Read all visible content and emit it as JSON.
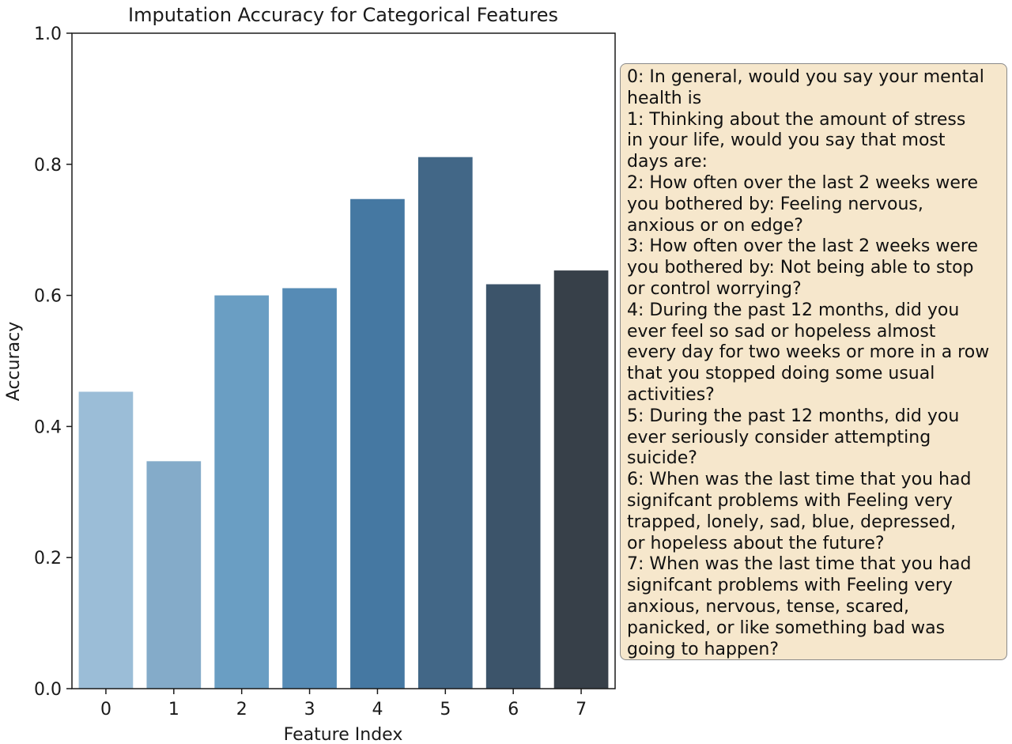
{
  "chart_data": {
    "type": "bar",
    "title": "Imputation Accuracy for Categorical Features",
    "xlabel": "Feature Index",
    "ylabel": "Accuracy",
    "ylim": [
      0,
      1.0
    ],
    "yticks": [
      "0.0",
      "0.2",
      "0.4",
      "0.6",
      "0.8",
      "1.0"
    ],
    "categories": [
      "0",
      "1",
      "2",
      "3",
      "4",
      "5",
      "6",
      "7"
    ],
    "values": [
      0.453,
      0.347,
      0.6,
      0.611,
      0.747,
      0.811,
      0.617,
      0.638
    ],
    "bar_colors": [
      "#9bbdd7",
      "#84abc9",
      "#6a9ec3",
      "#568bb5",
      "#4578a2",
      "#426787",
      "#3c546a",
      "#374049"
    ],
    "grid": false,
    "legend_placement": "right"
  },
  "legend": {
    "lines": [
      "0: In general, would you say your mental",
      "health is",
      "1: Thinking about the amount of stress",
      "in your life, would you say that most",
      "days are:",
      "2: How often over the last 2 weeks were",
      "you bothered by: Feeling nervous,",
      "anxious or on edge?",
      "3: How often over the last 2 weeks were",
      "you bothered by: Not being able to stop",
      "or control worrying?",
      "4: During the past 12 months, did you",
      "ever feel so sad or hopeless almost",
      "every day for two weeks or more in a row",
      "that you stopped doing some usual",
      "activities?",
      "5: During the past 12 months, did you",
      "ever seriously consider attempting",
      "suicide?",
      "6: When was the last time that you had",
      "signifcant problems with Feeling very",
      "trapped, lonely, sad, blue, depressed,",
      "or hopeless about the future?",
      "7: When was the last time that you had",
      "signifcant problems with Feeling very",
      "anxious, nervous, tense, scared,",
      "panicked, or like something bad was",
      "going to happen?"
    ]
  }
}
